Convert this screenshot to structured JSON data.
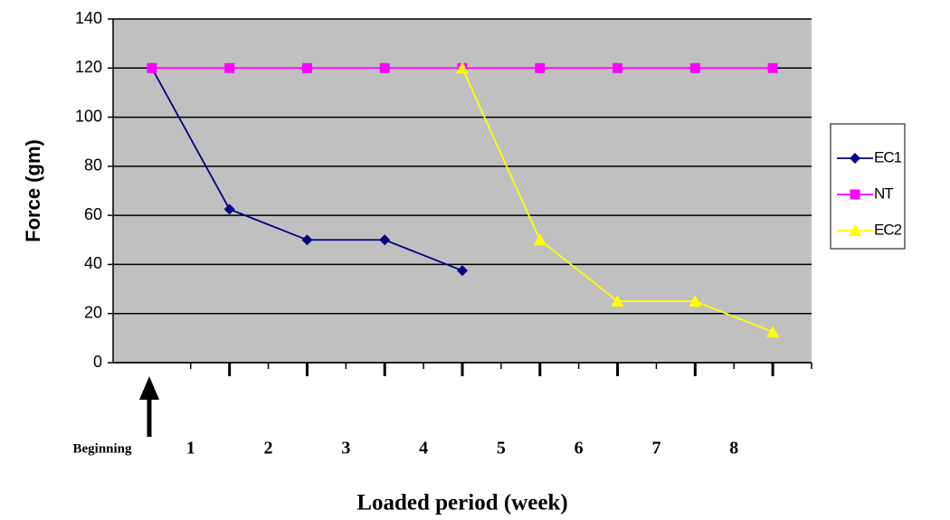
{
  "chart_data": {
    "type": "line",
    "x_label": "Loaded period (week)",
    "y_label": "Force (gm)",
    "categories": [
      "Beginning",
      "1",
      "2",
      "3",
      "4",
      "5",
      "6",
      "7",
      "8"
    ],
    "series": [
      {
        "name": "EC1",
        "color": "#000080",
        "marker": "diamond",
        "values": [
          120,
          62.5,
          50,
          50,
          37.5,
          null,
          null,
          null,
          null
        ]
      },
      {
        "name": "NT",
        "color": "#ff00ff",
        "marker": "square",
        "values": [
          120,
          120,
          120,
          120,
          120,
          120,
          120,
          120,
          120
        ]
      },
      {
        "name": "EC2",
        "color": "#ffff00",
        "marker": "triangle",
        "values": [
          null,
          null,
          null,
          null,
          120,
          50,
          25,
          25,
          12.5
        ]
      }
    ],
    "ylim": [
      0,
      140
    ],
    "yticks": [
      0,
      20,
      40,
      60,
      80,
      100,
      120,
      140
    ],
    "grid": true,
    "legend": "right"
  }
}
